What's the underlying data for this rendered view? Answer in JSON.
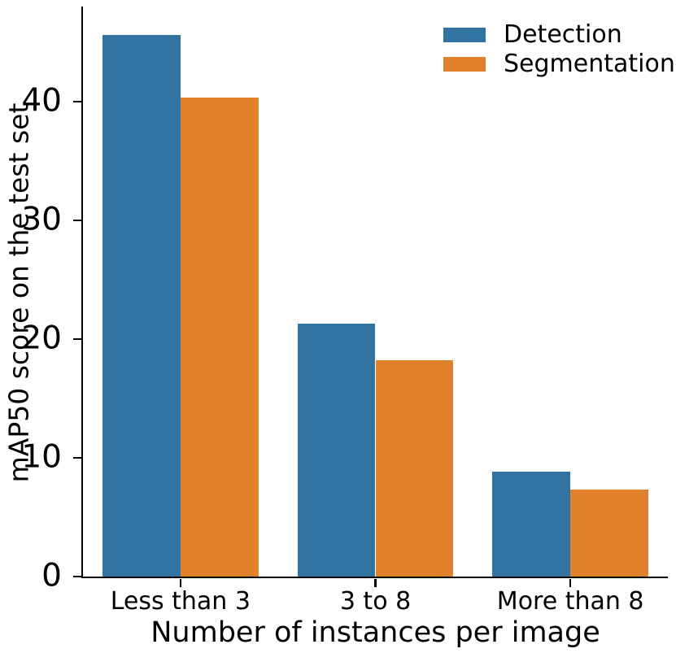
{
  "chart_data": {
    "type": "bar",
    "title": "",
    "categories": [
      "Less than 3",
      "3 to 8",
      "More than 8"
    ],
    "series": [
      {
        "name": "Detection",
        "color": "#3274a1",
        "values": [
          45.6,
          21.3,
          8.8
        ]
      },
      {
        "name": "Segmentation",
        "color": "#e1812c",
        "values": [
          40.3,
          18.2,
          7.3
        ]
      }
    ],
    "xlabel": "Number of instances per image",
    "ylabel": "mAP50 score on the test set",
    "yticks": [
      0,
      10,
      20,
      30,
      40
    ],
    "ylim": [
      0,
      48
    ],
    "bar_group_fraction": 0.8,
    "legend_position": "upper right",
    "grid": false,
    "spine_color": "#000000",
    "background_color": "#ffffff"
  }
}
